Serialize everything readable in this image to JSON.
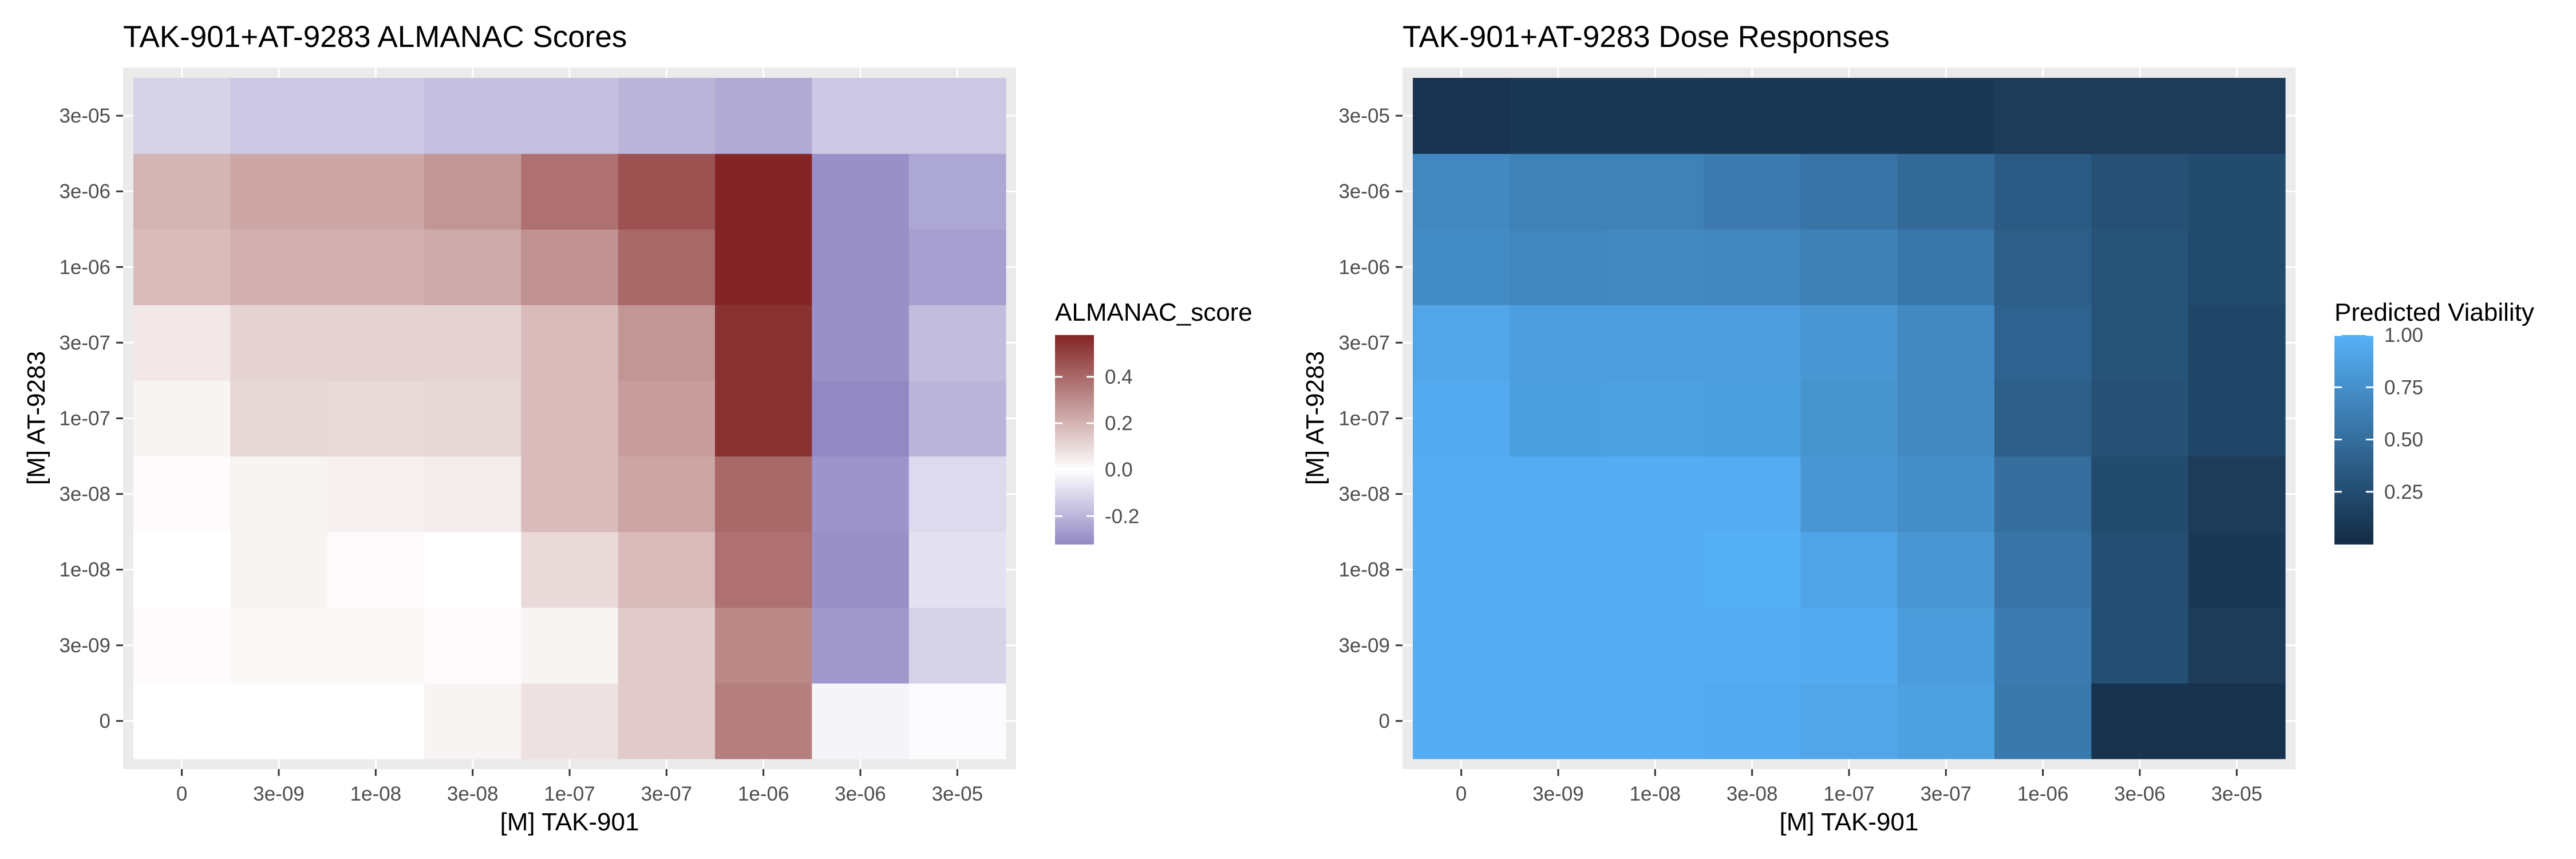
{
  "chart_data": [
    {
      "type": "heatmap",
      "title": "TAK-901+AT-9283 ALMANAC Scores",
      "xlabel": "[M] TAK-901",
      "ylabel": "[M] AT-9283",
      "x": [
        "0",
        "3e-09",
        "1e-08",
        "3e-08",
        "1e-07",
        "3e-07",
        "1e-06",
        "3e-06",
        "3e-05"
      ],
      "y": [
        "0",
        "3e-09",
        "1e-08",
        "3e-08",
        "1e-07",
        "3e-07",
        "1e-06",
        "3e-06",
        "3e-05"
      ],
      "z": [
        [
          0.0,
          0.0,
          0.0,
          0.03,
          0.08,
          0.14,
          0.34,
          -0.03,
          -0.01
        ],
        [
          0.01,
          0.02,
          0.02,
          0.01,
          0.03,
          0.14,
          0.32,
          -0.28,
          -0.12
        ],
        [
          0.0,
          0.03,
          0.01,
          0.0,
          0.1,
          0.18,
          0.38,
          -0.3,
          -0.08
        ],
        [
          0.01,
          0.03,
          0.04,
          0.05,
          0.18,
          0.24,
          0.4,
          -0.29,
          -0.1
        ],
        [
          0.03,
          0.11,
          0.1,
          0.11,
          0.18,
          0.26,
          0.55,
          -0.35,
          -0.2
        ],
        [
          0.06,
          0.12,
          0.12,
          0.12,
          0.18,
          0.28,
          0.55,
          -0.3,
          -0.18
        ],
        [
          0.18,
          0.21,
          0.21,
          0.23,
          0.29,
          0.4,
          0.58,
          -0.3,
          -0.26
        ],
        [
          0.2,
          0.24,
          0.24,
          0.28,
          0.38,
          0.46,
          0.6,
          -0.3,
          -0.24
        ],
        [
          -0.12,
          -0.15,
          -0.15,
          -0.17,
          -0.17,
          -0.2,
          -0.23,
          -0.15,
          -0.15
        ]
      ],
      "legend_title": "ALMANAC_score",
      "legend_ticks": [
        0.4,
        0.2,
        0.0,
        -0.2
      ],
      "legend_tick_labels": [
        "0.4",
        "0.2",
        "0.0",
        "-0.2"
      ],
      "zlim": [
        -0.32,
        0.58
      ],
      "colors": {
        "low": "#9289c4",
        "mid": "#ffffff",
        "high": "#832525",
        "panel": "#ebebeb",
        "grid": "#ffffff"
      },
      "legend_position": "right"
    },
    {
      "type": "heatmap",
      "title": "TAK-901+AT-9283 Dose Responses",
      "xlabel": "[M] TAK-901",
      "ylabel": "[M] AT-9283",
      "x": [
        "0",
        "3e-09",
        "1e-08",
        "3e-08",
        "1e-07",
        "3e-07",
        "1e-06",
        "3e-06",
        "3e-05"
      ],
      "y": [
        "0",
        "3e-09",
        "1e-08",
        "3e-08",
        "1e-07",
        "3e-07",
        "1e-06",
        "3e-06",
        "3e-05"
      ],
      "z": [
        [
          0.98,
          0.98,
          0.98,
          0.95,
          0.92,
          0.88,
          0.58,
          0.06,
          0.05
        ],
        [
          0.98,
          0.97,
          0.97,
          0.98,
          0.96,
          0.84,
          0.6,
          0.26,
          0.13
        ],
        [
          0.98,
          0.97,
          0.98,
          0.99,
          0.9,
          0.8,
          0.55,
          0.26,
          0.1
        ],
        [
          0.97,
          0.97,
          0.97,
          0.97,
          0.8,
          0.74,
          0.5,
          0.24,
          0.13
        ],
        [
          0.95,
          0.87,
          0.88,
          0.87,
          0.78,
          0.7,
          0.38,
          0.28,
          0.2
        ],
        [
          0.92,
          0.86,
          0.86,
          0.86,
          0.8,
          0.7,
          0.42,
          0.3,
          0.2
        ],
        [
          0.72,
          0.69,
          0.7,
          0.68,
          0.64,
          0.56,
          0.38,
          0.3,
          0.23
        ],
        [
          0.7,
          0.65,
          0.65,
          0.6,
          0.54,
          0.46,
          0.36,
          0.28,
          0.24
        ],
        [
          0.07,
          0.1,
          0.1,
          0.09,
          0.1,
          0.1,
          0.13,
          0.13,
          0.13
        ]
      ],
      "legend_title": "Predicted Viability",
      "legend_ticks": [
        1.0,
        0.75,
        0.5,
        0.25
      ],
      "legend_tick_labels": [
        "1.00",
        "0.75",
        "0.50",
        "0.25"
      ],
      "zlim": [
        0.0,
        1.0
      ],
      "colors": {
        "low": "#132b43",
        "high": "#56b1f7",
        "panel": "#ebebeb",
        "grid": "#ffffff"
      },
      "legend_position": "right"
    }
  ]
}
